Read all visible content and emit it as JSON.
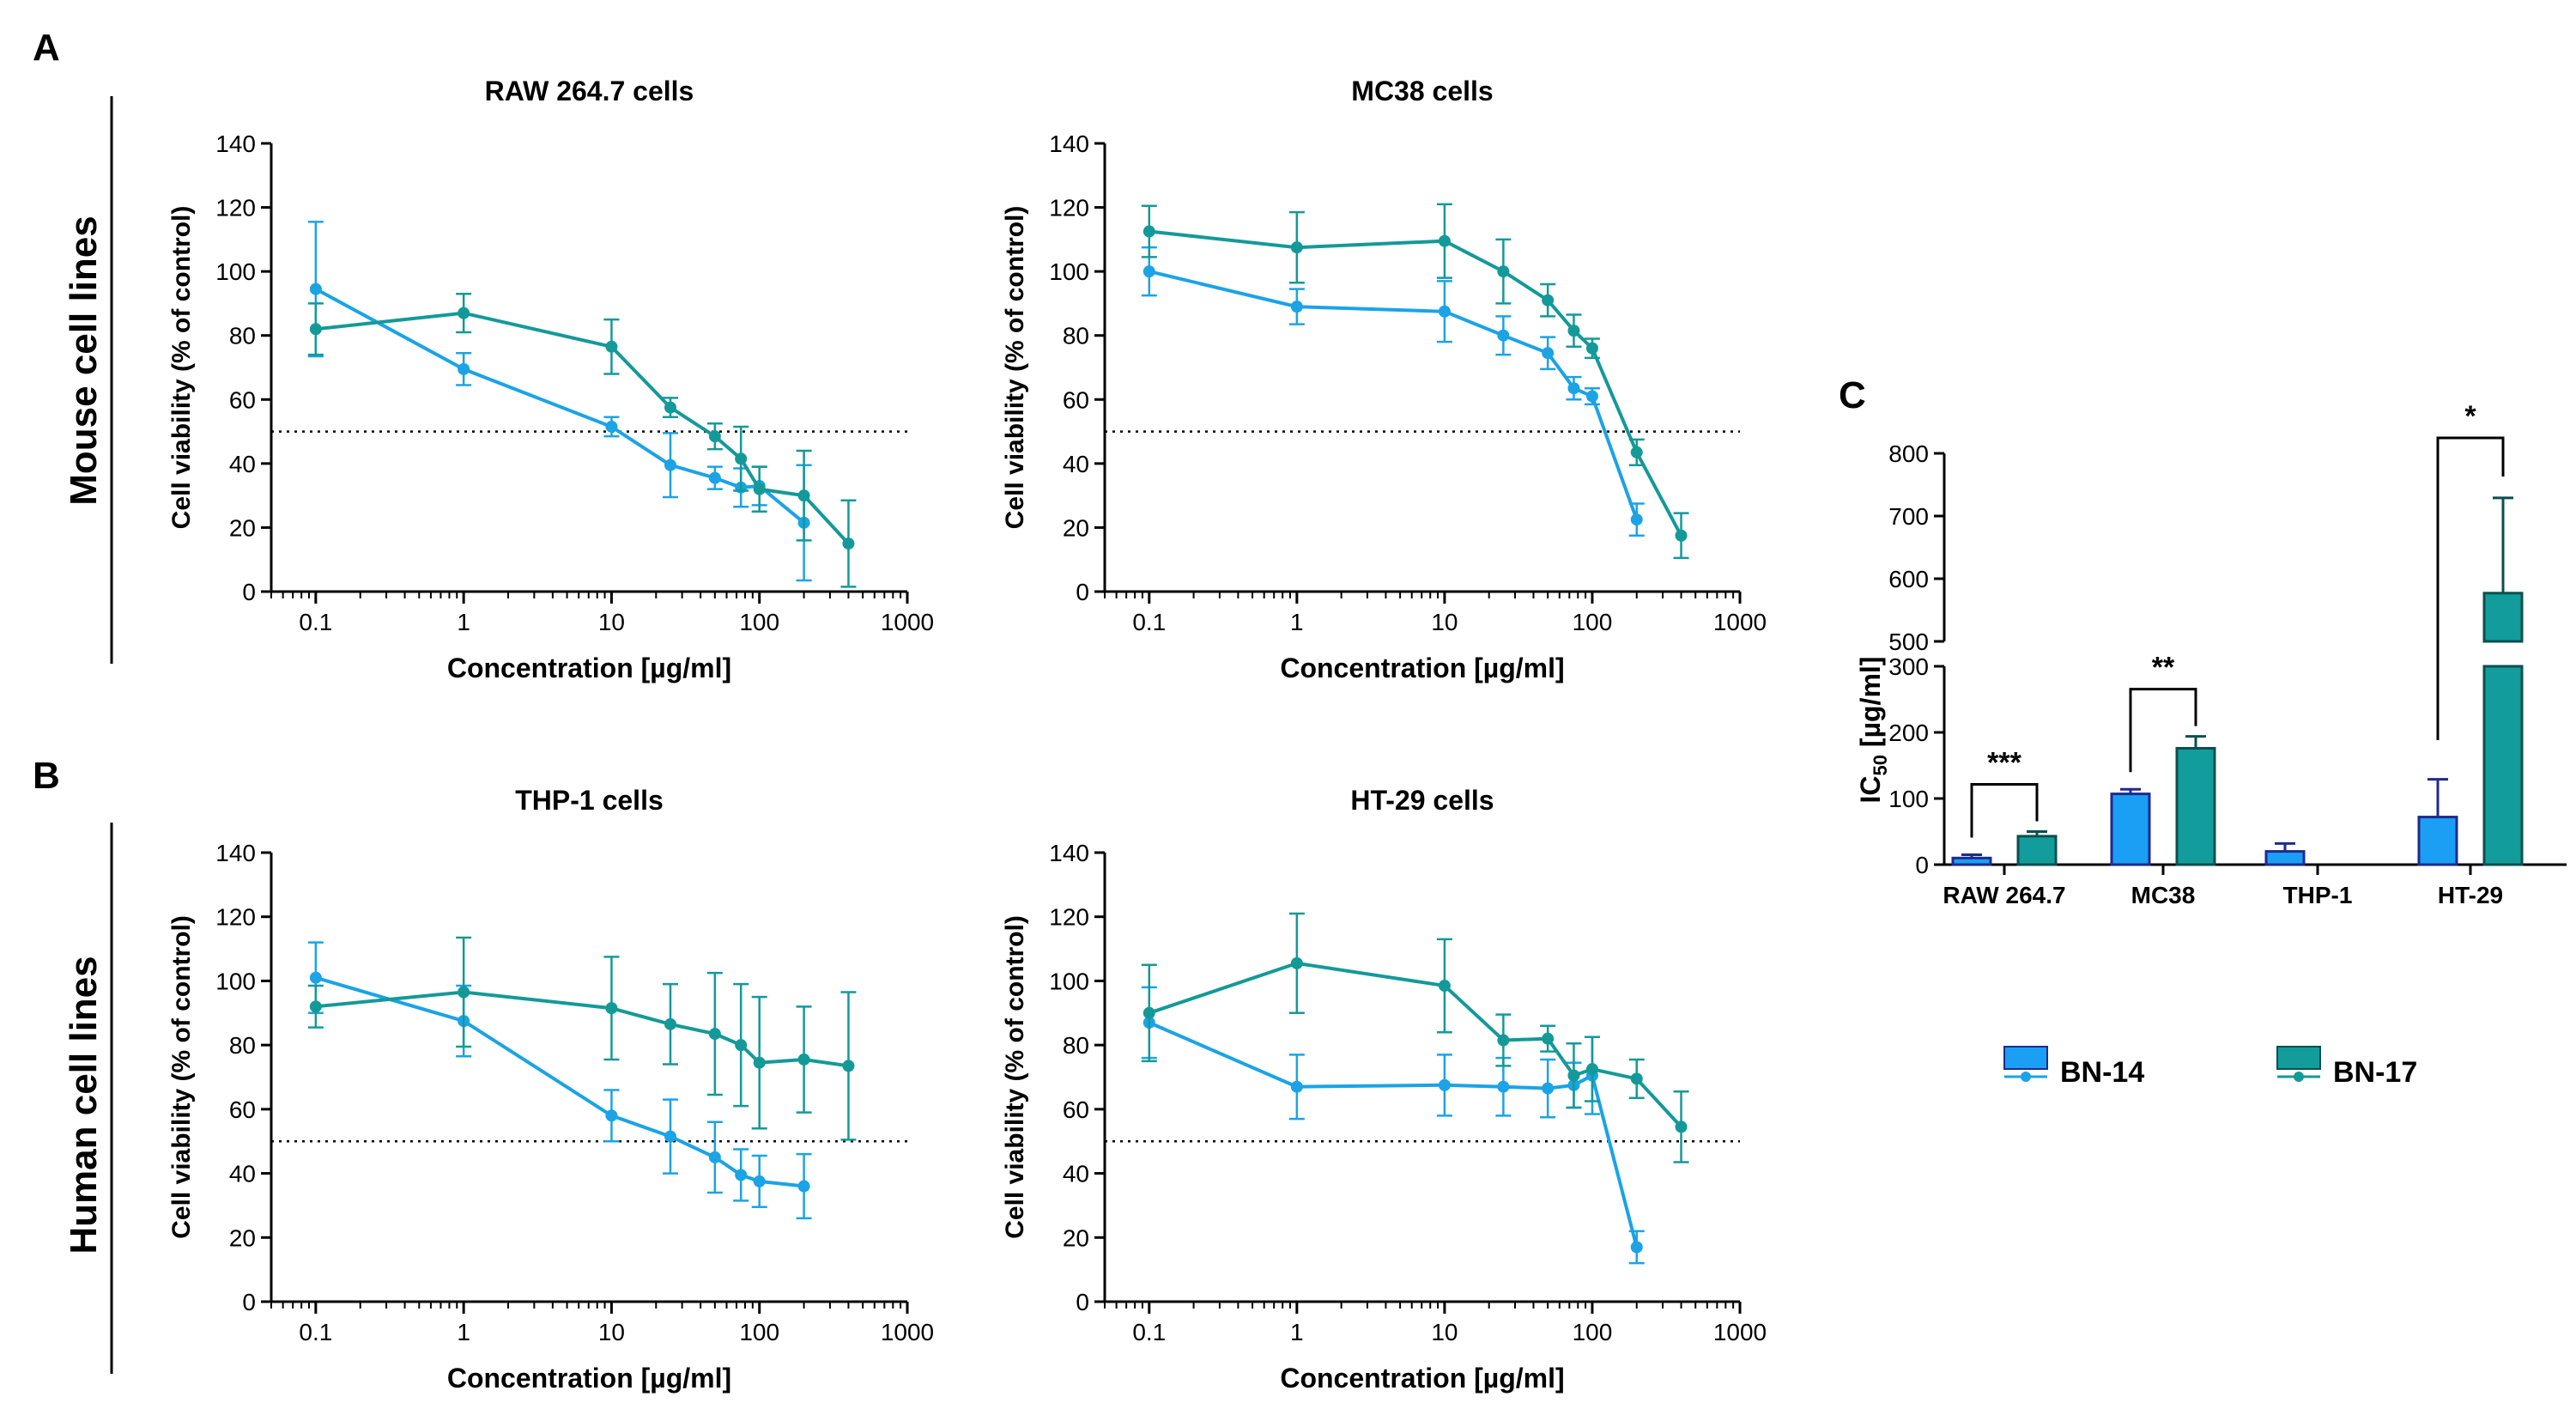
{
  "figure": {
    "panel_labels": {
      "A": "A",
      "B": "B",
      "C": "C"
    },
    "row_labels": {
      "mouse": "Mouse cell lines",
      "human": "Human cell lines"
    },
    "colors": {
      "bn14": "#1ba3e6",
      "bn17": "#149999",
      "bn14_bar": "#1a9ff5",
      "bn14_bar_edge": "#1f2a8c",
      "bn17_bar": "#139c9c",
      "bn17_bar_edge": "#0b4f4f"
    }
  },
  "chart_data": [
    {
      "id": "raw",
      "type": "line",
      "title": "RAW 264.7 cells",
      "xlabel": "Concentration [µg/ml]",
      "ylabel": "Cell viability (% of control)",
      "xscale": "log",
      "xlim": [
        0.05,
        1000
      ],
      "ylim": [
        0,
        140
      ],
      "yticks": [
        0,
        20,
        40,
        60,
        80,
        100,
        120,
        140
      ],
      "xticks": [
        {
          "v": 0.1,
          "label": "0.1"
        },
        {
          "v": 1,
          "label": "1"
        },
        {
          "v": 10,
          "label": "10"
        },
        {
          "v": 100,
          "label": "100"
        },
        {
          "v": 1000,
          "label": "1000"
        }
      ],
      "reference_line": 50,
      "series": [
        {
          "name": "BN-14",
          "x": [
            0.1,
            1,
            10,
            25,
            50,
            75,
            100,
            200
          ],
          "y": [
            94.5,
            69.5,
            51.5,
            39.5,
            35.5,
            32.5,
            33,
            21.5
          ],
          "err": [
            21,
            5,
            3,
            10,
            3.5,
            6,
            6,
            18
          ]
        },
        {
          "name": "BN-17",
          "x": [
            0.1,
            1,
            10,
            25,
            50,
            75,
            100,
            200,
            400
          ],
          "y": [
            82,
            87,
            76.5,
            57.5,
            48.5,
            41.5,
            32,
            30,
            15
          ],
          "err": [
            8,
            6,
            8.5,
            3,
            4,
            10,
            7,
            14,
            13.5
          ]
        }
      ]
    },
    {
      "id": "mc38",
      "type": "line",
      "title": "MC38 cells",
      "xlabel": "Concentration [µg/ml]",
      "ylabel": "Cell viability (% of control)",
      "xscale": "log",
      "xlim": [
        0.05,
        1000
      ],
      "ylim": [
        0,
        140
      ],
      "yticks": [
        0,
        20,
        40,
        60,
        80,
        100,
        120,
        140
      ],
      "xticks": [
        {
          "v": 0.1,
          "label": "0.1"
        },
        {
          "v": 1,
          "label": "1"
        },
        {
          "v": 10,
          "label": "10"
        },
        {
          "v": 100,
          "label": "100"
        },
        {
          "v": 1000,
          "label": "1000"
        }
      ],
      "reference_line": 50,
      "series": [
        {
          "name": "BN-14",
          "x": [
            0.1,
            1,
            10,
            25,
            50,
            75,
            100,
            200
          ],
          "y": [
            100,
            89,
            87.5,
            80,
            74.5,
            63.5,
            61,
            22.5
          ],
          "err": [
            7.5,
            5.5,
            9.5,
            6,
            5,
            3.5,
            2.5,
            5
          ]
        },
        {
          "name": "BN-17",
          "x": [
            0.1,
            1,
            10,
            25,
            50,
            75,
            100,
            200,
            400
          ],
          "y": [
            112.5,
            107.5,
            109.5,
            100,
            91,
            81.5,
            76,
            43.5,
            17.5
          ],
          "err": [
            8,
            11,
            11.5,
            10,
            5,
            5,
            3,
            4,
            7
          ]
        }
      ]
    },
    {
      "id": "thp1",
      "type": "line",
      "title": "THP-1 cells",
      "xlabel": "Concentration [µg/ml]",
      "ylabel": "Cell viability (% of control)",
      "xscale": "log",
      "xlim": [
        0.05,
        1000
      ],
      "ylim": [
        0,
        140
      ],
      "yticks": [
        0,
        20,
        40,
        60,
        80,
        100,
        120,
        140
      ],
      "xticks": [
        {
          "v": 0.1,
          "label": "0.1"
        },
        {
          "v": 1,
          "label": "1"
        },
        {
          "v": 10,
          "label": "10"
        },
        {
          "v": 100,
          "label": "100"
        },
        {
          "v": 1000,
          "label": "1000"
        }
      ],
      "reference_line": 50,
      "series": [
        {
          "name": "BN-14",
          "x": [
            0.1,
            1,
            10,
            25,
            50,
            75,
            100,
            200
          ],
          "y": [
            101,
            87.5,
            58,
            51.5,
            45,
            39.5,
            37.5,
            36
          ],
          "err": [
            11,
            11,
            8,
            11.5,
            11,
            8,
            8,
            10
          ]
        },
        {
          "name": "BN-17",
          "x": [
            0.1,
            1,
            10,
            25,
            50,
            75,
            100,
            200,
            400
          ],
          "y": [
            92,
            96.5,
            91.5,
            86.5,
            83.5,
            80,
            74.5,
            75.5,
            73.5
          ],
          "err": [
            6.5,
            17,
            16,
            12.5,
            19,
            19,
            20.5,
            16.5,
            23
          ]
        }
      ]
    },
    {
      "id": "ht29",
      "type": "line",
      "title": "HT-29 cells",
      "xlabel": "Concentration [µg/ml]",
      "ylabel": "Cell viability (% of control)",
      "xscale": "log",
      "xlim": [
        0.05,
        1000
      ],
      "ylim": [
        0,
        140
      ],
      "yticks": [
        0,
        20,
        40,
        60,
        80,
        100,
        120,
        140
      ],
      "xticks": [
        {
          "v": 0.1,
          "label": "0.1"
        },
        {
          "v": 1,
          "label": "1"
        },
        {
          "v": 10,
          "label": "10"
        },
        {
          "v": 100,
          "label": "100"
        },
        {
          "v": 1000,
          "label": "1000"
        }
      ],
      "reference_line": 50,
      "series": [
        {
          "name": "BN-14",
          "x": [
            0.1,
            1,
            10,
            25,
            50,
            75,
            100,
            200
          ],
          "y": [
            87,
            67,
            67.5,
            67,
            66.5,
            67.5,
            70.5,
            17
          ],
          "err": [
            11,
            10,
            9.5,
            9,
            9,
            7,
            12,
            5
          ]
        },
        {
          "name": "BN-17",
          "x": [
            0.1,
            1,
            10,
            25,
            50,
            75,
            100,
            200,
            400
          ],
          "y": [
            90,
            105.5,
            98.5,
            81.5,
            82,
            70.5,
            72.5,
            69.5,
            54.5
          ],
          "err": [
            15,
            15.5,
            14.5,
            8,
            4,
            10,
            10,
            6,
            11
          ]
        }
      ]
    },
    {
      "id": "ic50",
      "type": "bar",
      "title": "",
      "ylabel": "IC50 [µg/ml]",
      "ylabel_main": "IC",
      "ylabel_sub": "50",
      "ylabel_rest": " [µg/ml]",
      "categories": [
        "RAW 264.7",
        "MC38",
        "THP-1",
        "HT-29"
      ],
      "axis_break": {
        "lower": [
          0,
          300
        ],
        "upper": [
          500,
          800
        ]
      },
      "yticks_lower": [
        0,
        100,
        200,
        300
      ],
      "yticks_upper": [
        500,
        600,
        700,
        800
      ],
      "series": [
        {
          "name": "BN-14",
          "values": [
            10,
            107,
            20,
            72
          ],
          "err": [
            5,
            7,
            12,
            57
          ]
        },
        {
          "name": "BN-17",
          "values": [
            43,
            176,
            null,
            577
          ],
          "err": [
            7,
            18,
            null,
            152
          ]
        }
      ],
      "significance": [
        {
          "category": "RAW 264.7",
          "label": "***"
        },
        {
          "category": "MC38",
          "label": "**"
        },
        {
          "category": "HT-29",
          "label": "*"
        }
      ],
      "legend": [
        "BN-14",
        "BN-17"
      ]
    }
  ]
}
